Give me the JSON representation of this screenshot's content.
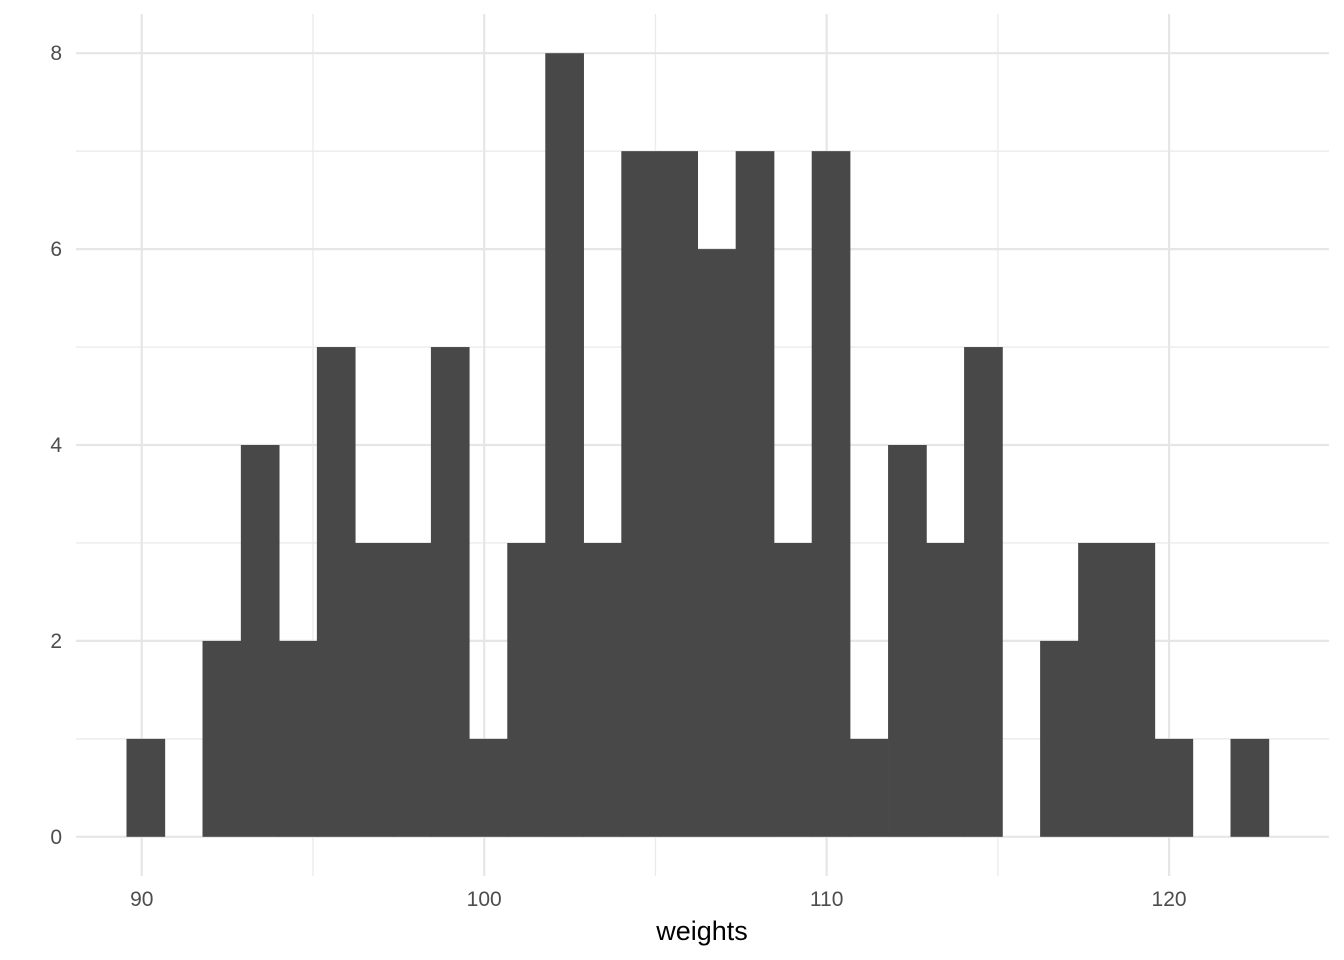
{
  "chart_data": {
    "type": "bar",
    "subtype": "histogram",
    "title": "",
    "xlabel": "weights",
    "ylabel": "",
    "xlim": [
      88.08,
      124.67
    ],
    "ylim": [
      -0.4,
      8.4
    ],
    "x_ticks": [
      90,
      100,
      110,
      120
    ],
    "x_tick_labels": [
      "90",
      "100",
      "110",
      "120"
    ],
    "y_ticks": [
      0,
      2,
      4,
      6,
      8
    ],
    "y_tick_labels": [
      "0",
      "2",
      "4",
      "6",
      "8"
    ],
    "grid": true,
    "bin_width": 1.112,
    "bin_centers": [
      90.11,
      91.22,
      92.33,
      93.45,
      94.56,
      95.67,
      96.78,
      97.89,
      99.0,
      100.12,
      101.23,
      102.34,
      103.45,
      104.56,
      105.67,
      106.79,
      107.9,
      109.01,
      110.12,
      111.23,
      112.35,
      113.46,
      114.57,
      115.68,
      116.79,
      117.9,
      119.02,
      120.13,
      121.24,
      122.35
    ],
    "values": [
      1,
      0,
      2,
      4,
      2,
      5,
      3,
      3,
      5,
      1,
      3,
      8,
      3,
      7,
      7,
      6,
      7,
      3,
      7,
      1,
      4,
      3,
      5,
      0,
      2,
      3,
      3,
      1,
      0,
      1
    ],
    "bar_color": "#484848",
    "background": "#ffffff"
  }
}
